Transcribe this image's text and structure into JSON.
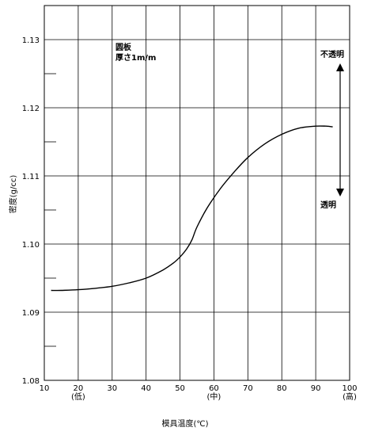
{
  "chart_data": {
    "type": "line",
    "title": "",
    "xlabel": "模具温度(℃)",
    "ylabel": "密度(g/cc)",
    "xlim": [
      10,
      100
    ],
    "ylim": [
      1.08,
      1.135
    ],
    "grid": true,
    "x_ticks": [
      {
        "value": 10,
        "label": "10",
        "sub": ""
      },
      {
        "value": 20,
        "label": "20",
        "sub": "(低)"
      },
      {
        "value": 30,
        "label": "30",
        "sub": ""
      },
      {
        "value": 40,
        "label": "40",
        "sub": ""
      },
      {
        "value": 50,
        "label": "50",
        "sub": ""
      },
      {
        "value": 60,
        "label": "60",
        "sub": "(中)"
      },
      {
        "value": 70,
        "label": "70",
        "sub": ""
      },
      {
        "value": 80,
        "label": "80",
        "sub": ""
      },
      {
        "value": 90,
        "label": "90",
        "sub": ""
      },
      {
        "value": 100,
        "label": "100",
        "sub": "(高)"
      }
    ],
    "y_ticks": [
      {
        "value": 1.08,
        "label": "1.08"
      },
      {
        "value": 1.09,
        "label": "1.09"
      },
      {
        "value": 1.1,
        "label": "1.10"
      },
      {
        "value": 1.11,
        "label": "1.11"
      },
      {
        "value": 1.12,
        "label": "1.12"
      },
      {
        "value": 1.13,
        "label": "1.13"
      }
    ],
    "series": [
      {
        "name": "",
        "x": [
          12,
          15,
          20,
          25,
          30,
          35,
          40,
          45,
          48,
          50,
          52,
          53.5,
          55,
          58,
          62,
          66,
          70,
          75,
          80,
          85,
          90,
          93,
          95
        ],
        "y": [
          1.0932,
          1.0932,
          1.0933,
          1.0935,
          1.0938,
          1.0943,
          1.095,
          1.0962,
          1.0972,
          1.0981,
          1.0993,
          1.1006,
          1.1025,
          1.1053,
          1.1082,
          1.1106,
          1.1127,
          1.1147,
          1.1161,
          1.117,
          1.1173,
          1.1173,
          1.1172
        ]
      }
    ],
    "annotations": {
      "condition_line1": "圆板",
      "condition_line2": "厚さ1m/m",
      "opaque_label": "不透明",
      "transparent_label": "透明"
    }
  }
}
